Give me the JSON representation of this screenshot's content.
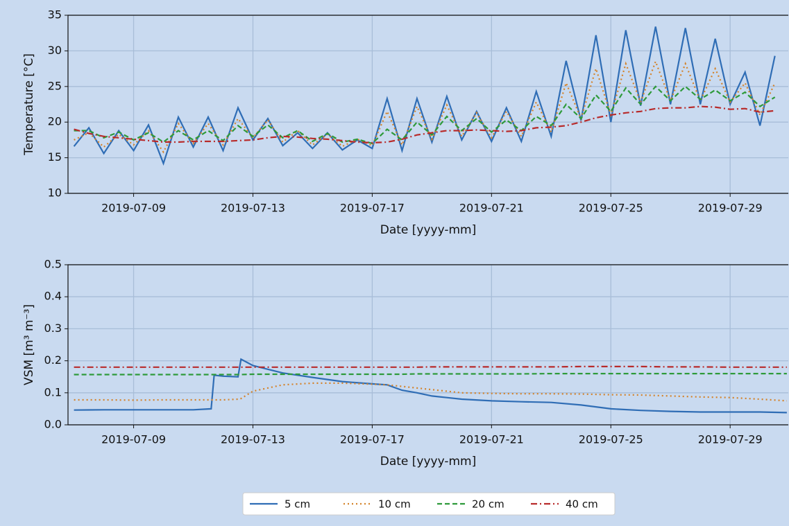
{
  "chart_data": [
    {
      "type": "line",
      "ylabel": "Temperature [°C]",
      "xlabel": "Date [yyyy-mm]",
      "xlim": [
        6.8,
        30.95
      ],
      "ylim": [
        10,
        35
      ],
      "yticks": [
        10,
        15,
        20,
        25,
        30,
        35
      ],
      "xticks": [
        {
          "value": 9,
          "label": "2019-07-09"
        },
        {
          "value": 13,
          "label": "2019-07-13"
        },
        {
          "value": 17,
          "label": "2019-07-17"
        },
        {
          "value": 21,
          "label": "2019-07-21"
        },
        {
          "value": 25,
          "label": "2019-07-25"
        },
        {
          "value": 29,
          "label": "2019-07-29"
        }
      ],
      "grid": true,
      "x": [
        7,
        7.5,
        8,
        8.5,
        9,
        9.5,
        10,
        10.5,
        11,
        11.5,
        12,
        12.5,
        13,
        13.5,
        14,
        14.5,
        15,
        15.5,
        16,
        16.5,
        17,
        17.5,
        18,
        18.5,
        19,
        19.5,
        20,
        20.5,
        21,
        21.5,
        22,
        22.5,
        23,
        23.5,
        24,
        24.5,
        25,
        25.5,
        26,
        26.5,
        27,
        27.5,
        28,
        28.5,
        29,
        29.5,
        30,
        30.5
      ],
      "series": [
        {
          "name": "5 cm",
          "color": "#2f6db5",
          "linestyle": "solid",
          "values": [
            16.6,
            19.2,
            15.6,
            18.8,
            16.0,
            19.6,
            14.2,
            20.7,
            16.5,
            20.7,
            16.0,
            22.0,
            17.5,
            20.5,
            16.7,
            18.5,
            16.3,
            18.5,
            16.1,
            17.5,
            16.3,
            23.3,
            16.0,
            23.3,
            17.2,
            23.6,
            17.5,
            21.5,
            17.3,
            22.0,
            17.3,
            24.3,
            18.0,
            28.6,
            20.2,
            32.2,
            20.0,
            32.9,
            22.3,
            33.4,
            22.5,
            33.2,
            22.5,
            31.7,
            22.5,
            27.0,
            19.5,
            29.3
          ]
        },
        {
          "name": "10 cm",
          "color": "#d4832a",
          "linestyle": "dotted",
          "values": [
            17.5,
            18.5,
            16.5,
            18.3,
            16.8,
            18.8,
            15.8,
            19.8,
            17.0,
            19.8,
            16.8,
            20.5,
            17.8,
            20.3,
            17.2,
            18.8,
            16.8,
            18.3,
            16.6,
            17.6,
            16.7,
            21.5,
            16.8,
            22.2,
            17.6,
            22.4,
            18.0,
            21.3,
            17.8,
            21.5,
            18.0,
            22.8,
            18.6,
            25.5,
            20.5,
            27.5,
            21.0,
            28.2,
            22.8,
            28.5,
            23.0,
            28.2,
            23.0,
            27.5,
            22.8,
            25.5,
            21.0,
            25.5
          ]
        },
        {
          "name": "20 cm",
          "color": "#2e9a3a",
          "linestyle": "dashed",
          "values": [
            18.8,
            18.8,
            17.8,
            18.6,
            17.5,
            18.5,
            17.2,
            18.8,
            17.5,
            18.8,
            17.4,
            19.5,
            18.0,
            19.6,
            17.8,
            18.8,
            17.3,
            18.4,
            17.2,
            17.6,
            17.0,
            19.0,
            17.5,
            20.0,
            18.2,
            20.8,
            18.8,
            20.5,
            18.6,
            20.3,
            18.8,
            20.8,
            19.5,
            22.5,
            20.5,
            23.8,
            21.5,
            24.8,
            22.5,
            25.0,
            23.0,
            25.0,
            23.2,
            24.5,
            23.0,
            24.2,
            22.2,
            23.5
          ]
        },
        {
          "name": "40 cm",
          "color": "#b82a2a",
          "linestyle": "dashdot",
          "values": [
            19.0,
            18.4,
            18.0,
            17.8,
            17.6,
            17.4,
            17.2,
            17.2,
            17.3,
            17.3,
            17.3,
            17.4,
            17.5,
            17.8,
            18.0,
            17.9,
            17.7,
            17.6,
            17.4,
            17.2,
            17.1,
            17.2,
            17.6,
            18.2,
            18.5,
            18.8,
            18.8,
            18.9,
            18.8,
            18.7,
            18.8,
            19.2,
            19.3,
            19.5,
            20.0,
            20.6,
            21.0,
            21.3,
            21.5,
            21.9,
            22.0,
            22.0,
            22.2,
            22.1,
            21.8,
            21.9,
            21.4,
            21.6
          ]
        }
      ]
    },
    {
      "type": "line",
      "ylabel": "VSM [m³ m⁻³]",
      "xlabel": "Date [yyyy-mm]",
      "xlim": [
        6.8,
        30.95
      ],
      "ylim": [
        0,
        0.5
      ],
      "yticks": [
        {
          "value": 0,
          "label": "0.0"
        },
        0.1,
        0.2,
        0.3,
        0.4,
        0.5
      ],
      "xticks": [
        {
          "value": 9,
          "label": "2019-07-09"
        },
        {
          "value": 13,
          "label": "2019-07-13"
        },
        {
          "value": 17,
          "label": "2019-07-17"
        },
        {
          "value": 21,
          "label": "2019-07-21"
        },
        {
          "value": 25,
          "label": "2019-07-25"
        },
        {
          "value": 29,
          "label": "2019-07-29"
        }
      ],
      "grid": true,
      "legend": "bottom",
      "x": [
        7,
        8,
        9,
        10,
        11,
        11.6,
        11.7,
        12,
        12.5,
        12.6,
        13,
        14,
        15,
        16,
        17,
        17.5,
        18,
        18.5,
        19,
        19.5,
        20,
        21,
        22,
        23,
        24,
        25,
        26,
        27,
        28,
        29,
        30,
        30.9
      ],
      "series": [
        {
          "name": "5 cm",
          "color": "#2f6db5",
          "linestyle": "solid",
          "values": [
            0.046,
            0.047,
            0.047,
            0.047,
            0.047,
            0.05,
            0.155,
            0.152,
            0.15,
            0.205,
            0.185,
            0.162,
            0.148,
            0.135,
            0.128,
            0.125,
            0.108,
            0.1,
            0.09,
            0.085,
            0.08,
            0.075,
            0.072,
            0.07,
            0.062,
            0.05,
            0.045,
            0.042,
            0.04,
            0.04,
            0.04,
            0.038
          ]
        },
        {
          "name": "10 cm",
          "color": "#d4832a",
          "linestyle": "dotted",
          "values": [
            0.078,
            0.078,
            0.077,
            0.078,
            0.078,
            0.078,
            0.078,
            0.078,
            0.08,
            0.082,
            0.105,
            0.125,
            0.13,
            0.13,
            0.127,
            0.125,
            0.12,
            0.115,
            0.11,
            0.105,
            0.1,
            0.098,
            0.097,
            0.097,
            0.096,
            0.094,
            0.093,
            0.09,
            0.087,
            0.085,
            0.08,
            0.075
          ]
        },
        {
          "name": "20 cm",
          "color": "#2e9a3a",
          "linestyle": "dashed",
          "values": [
            0.157,
            0.157,
            0.157,
            0.157,
            0.157,
            0.157,
            0.157,
            0.157,
            0.157,
            0.157,
            0.158,
            0.158,
            0.158,
            0.158,
            0.158,
            0.158,
            0.158,
            0.159,
            0.159,
            0.159,
            0.159,
            0.159,
            0.159,
            0.16,
            0.16,
            0.16,
            0.16,
            0.16,
            0.16,
            0.16,
            0.16,
            0.16
          ]
        },
        {
          "name": "40 cm",
          "color": "#b82a2a",
          "linestyle": "dashdot",
          "values": [
            0.18,
            0.18,
            0.18,
            0.18,
            0.18,
            0.18,
            0.18,
            0.18,
            0.18,
            0.18,
            0.18,
            0.18,
            0.18,
            0.18,
            0.18,
            0.18,
            0.18,
            0.18,
            0.181,
            0.181,
            0.181,
            0.181,
            0.181,
            0.181,
            0.182,
            0.182,
            0.182,
            0.181,
            0.181,
            0.18,
            0.18,
            0.18
          ]
        }
      ]
    }
  ]
}
